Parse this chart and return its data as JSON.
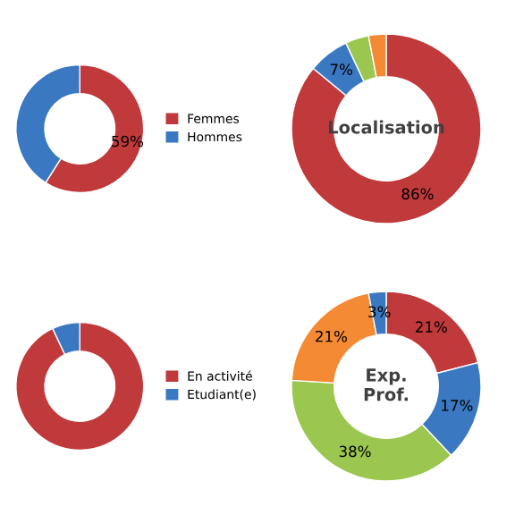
{
  "chart_data": [
    {
      "type": "donut",
      "categories": [
        "Femmes",
        "Hommes"
      ],
      "values": [
        59,
        41
      ],
      "colors": [
        "#c0393b",
        "#3a78c2"
      ],
      "value_labels": [
        "59%",
        null
      ],
      "legend": "right"
    },
    {
      "type": "donut",
      "title": "Localisation",
      "categories": [
        null,
        null,
        null,
        null
      ],
      "values": [
        86,
        7,
        4,
        3
      ],
      "colors": [
        "#c0393b",
        "#3a78c2",
        "#9bc750",
        "#f58a35"
      ],
      "value_labels": [
        "86%",
        "7%",
        null,
        null
      ]
    },
    {
      "type": "donut",
      "categories": [
        "En activité",
        "Etudiant(e)"
      ],
      "values": [
        93,
        7
      ],
      "colors": [
        "#c0393b",
        "#3a78c2"
      ],
      "legend": "right"
    },
    {
      "type": "donut",
      "title": "Exp.\nProf.",
      "categories": [
        null,
        null,
        null,
        null,
        null
      ],
      "values": [
        21,
        17,
        38,
        21,
        3
      ],
      "colors": [
        "#c0393b",
        "#3a78c2",
        "#9bc750",
        "#f58a35",
        "#3a78c2"
      ],
      "value_labels": [
        "21%",
        "17%",
        "38%",
        "21%",
        "3%"
      ]
    }
  ]
}
